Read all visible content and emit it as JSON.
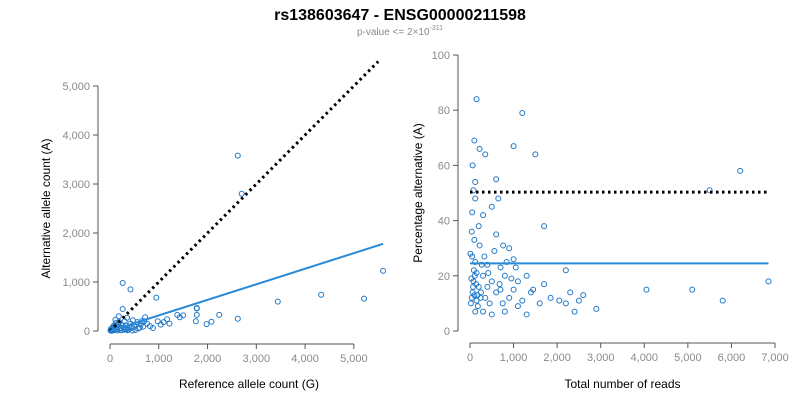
{
  "title": "rs138603647 - ENSG00000211598",
  "subtitle": {
    "prefix": "p-value <= 2×10",
    "exponent": "-311"
  },
  "colors": {
    "points": "#1f78c8",
    "fit_line": "#2a8ad8",
    "reference_line": "#000000",
    "axis": "#555555",
    "tick_text": "#8a8a8a"
  },
  "chart_data": [
    {
      "type": "scatter",
      "xlabel": "Reference allele count (G)",
      "ylabel": "Alternative allele count (A)",
      "xlim": [
        0,
        5700
      ],
      "ylim": [
        0,
        5000
      ],
      "xticks": [
        0,
        1000,
        2000,
        3000,
        4000,
        5000
      ],
      "yticks": [
        0,
        1000,
        2000,
        3000,
        4000,
        5000
      ],
      "tick_labels_x": [
        "0",
        "1,000",
        "2,000",
        "3,000",
        "4,000",
        "5,000"
      ],
      "tick_labels_y": [
        "0",
        "1,000",
        "2,000",
        "3,000",
        "4,000",
        "5,000"
      ],
      "grid": false,
      "points": [
        [
          2620,
          3580
        ],
        [
          2700,
          2800
        ],
        [
          260,
          980
        ],
        [
          420,
          850
        ],
        [
          5600,
          1230
        ],
        [
          4330,
          740
        ],
        [
          5210,
          660
        ],
        [
          3440,
          600
        ],
        [
          2620,
          250
        ],
        [
          2240,
          330
        ],
        [
          1780,
          470
        ],
        [
          1780,
          330
        ],
        [
          1760,
          200
        ],
        [
          1780,
          460
        ],
        [
          1380,
          330
        ],
        [
          1430,
          280
        ],
        [
          1170,
          240
        ],
        [
          1100,
          180
        ],
        [
          1040,
          130
        ],
        [
          950,
          680
        ],
        [
          720,
          280
        ],
        [
          650,
          200
        ],
        [
          630,
          130
        ],
        [
          560,
          180
        ],
        [
          500,
          90
        ],
        [
          470,
          220
        ],
        [
          420,
          150
        ],
        [
          400,
          60
        ],
        [
          350,
          270
        ],
        [
          330,
          40
        ],
        [
          300,
          200
        ],
        [
          260,
          450
        ],
        [
          250,
          120
        ],
        [
          230,
          60
        ],
        [
          210,
          20
        ],
        [
          190,
          180
        ],
        [
          180,
          300
        ],
        [
          160,
          80
        ],
        [
          140,
          40
        ],
        [
          120,
          160
        ],
        [
          100,
          60
        ],
        [
          90,
          20
        ],
        [
          80,
          110
        ],
        [
          70,
          40
        ],
        [
          60,
          10
        ],
        [
          50,
          70
        ],
        [
          40,
          20
        ],
        [
          30,
          5
        ],
        [
          20,
          40
        ],
        [
          10,
          10
        ],
        [
          110,
          230
        ],
        [
          170,
          130
        ],
        [
          280,
          70
        ],
        [
          320,
          110
        ],
        [
          380,
          30
        ],
        [
          440,
          60
        ],
        [
          520,
          20
        ],
        [
          580,
          50
        ],
        [
          680,
          90
        ],
        [
          760,
          150
        ],
        [
          820,
          100
        ],
        [
          880,
          60
        ],
        [
          980,
          200
        ],
        [
          1220,
          150
        ],
        [
          1500,
          320
        ],
        [
          1980,
          140
        ],
        [
          2080,
          190
        ],
        [
          150,
          10
        ],
        [
          240,
          15
        ],
        [
          360,
          15
        ],
        [
          460,
          10
        ],
        [
          90,
          90
        ],
        [
          130,
          100
        ],
        [
          200,
          50
        ],
        [
          300,
          30
        ],
        [
          540,
          130
        ],
        [
          610,
          70
        ],
        [
          700,
          200
        ]
      ],
      "fit_line": {
        "x": [
          0,
          5600
        ],
        "y": [
          0,
          1780
        ]
      },
      "reference_line": {
        "x": [
          0,
          5500
        ],
        "y": [
          0,
          5500
        ]
      }
    },
    {
      "type": "scatter",
      "xlabel": "Total number of reads",
      "ylabel": "Percentage alternative (A)",
      "xlim": [
        0,
        7000
      ],
      "ylim": [
        0,
        100
      ],
      "xticks": [
        0,
        1000,
        2000,
        3000,
        4000,
        5000,
        6000,
        7000
      ],
      "yticks": [
        0,
        20,
        40,
        60,
        80,
        100
      ],
      "tick_labels_x": [
        "0",
        "1,000",
        "2,000",
        "3,000",
        "4,000",
        "5,000",
        "6,000",
        "7,000"
      ],
      "tick_labels_y": [
        "0",
        "20",
        "40",
        "60",
        "80",
        "100"
      ],
      "grid": false,
      "points": [
        [
          150,
          84
        ],
        [
          1200,
          79
        ],
        [
          100,
          69
        ],
        [
          220,
          66
        ],
        [
          350,
          64
        ],
        [
          1000,
          67
        ],
        [
          1500,
          64
        ],
        [
          60,
          60
        ],
        [
          6200,
          58
        ],
        [
          600,
          55
        ],
        [
          120,
          54
        ],
        [
          80,
          51
        ],
        [
          5500,
          51
        ],
        [
          120,
          48
        ],
        [
          650,
          48
        ],
        [
          500,
          45
        ],
        [
          50,
          43
        ],
        [
          300,
          42
        ],
        [
          1700,
          38
        ],
        [
          200,
          38
        ],
        [
          40,
          36
        ],
        [
          600,
          35
        ],
        [
          100,
          33
        ],
        [
          900,
          30
        ],
        [
          220,
          31
        ],
        [
          10,
          28
        ],
        [
          50,
          27
        ],
        [
          1000,
          26
        ],
        [
          120,
          25
        ],
        [
          400,
          24
        ],
        [
          700,
          23
        ],
        [
          2200,
          22
        ],
        [
          150,
          21
        ],
        [
          300,
          20
        ],
        [
          800,
          20
        ],
        [
          1300,
          20
        ],
        [
          30,
          19
        ],
        [
          80,
          18
        ],
        [
          500,
          18
        ],
        [
          1100,
          18
        ],
        [
          1700,
          17
        ],
        [
          6850,
          18
        ],
        [
          200,
          16
        ],
        [
          400,
          16
        ],
        [
          700,
          15
        ],
        [
          1000,
          15
        ],
        [
          4050,
          15
        ],
        [
          5100,
          15
        ],
        [
          60,
          14
        ],
        [
          250,
          14
        ],
        [
          600,
          14
        ],
        [
          1400,
          14
        ],
        [
          2300,
          14
        ],
        [
          2600,
          13
        ],
        [
          100,
          13
        ],
        [
          350,
          12
        ],
        [
          900,
          12
        ],
        [
          1200,
          11
        ],
        [
          5800,
          11
        ],
        [
          150,
          11
        ],
        [
          450,
          10
        ],
        [
          750,
          10
        ],
        [
          1100,
          9
        ],
        [
          2200,
          10
        ],
        [
          2900,
          8
        ],
        [
          180,
          9
        ],
        [
          300,
          7
        ],
        [
          800,
          7
        ],
        [
          2400,
          7
        ],
        [
          500,
          6
        ],
        [
          1300,
          6
        ],
        [
          120,
          7
        ],
        [
          20,
          10
        ],
        [
          40,
          12
        ],
        [
          70,
          16
        ],
        [
          90,
          22
        ],
        [
          110,
          20
        ],
        [
          140,
          17
        ],
        [
          170,
          13
        ],
        [
          240,
          12
        ],
        [
          270,
          24
        ],
        [
          330,
          27
        ],
        [
          420,
          21
        ],
        [
          560,
          29
        ],
        [
          680,
          17
        ],
        [
          760,
          31
        ],
        [
          840,
          25
        ],
        [
          950,
          19
        ],
        [
          1050,
          23
        ],
        [
          1450,
          15
        ],
        [
          1600,
          10
        ],
        [
          1850,
          12
        ],
        [
          2050,
          11
        ],
        [
          2500,
          11
        ]
      ],
      "fit_line": {
        "x": [
          0,
          6850
        ],
        "y": [
          24.5,
          24.5
        ]
      },
      "reference_line": {
        "x": [
          0,
          6850
        ],
        "y": [
          50.3,
          50.3
        ]
      }
    }
  ]
}
